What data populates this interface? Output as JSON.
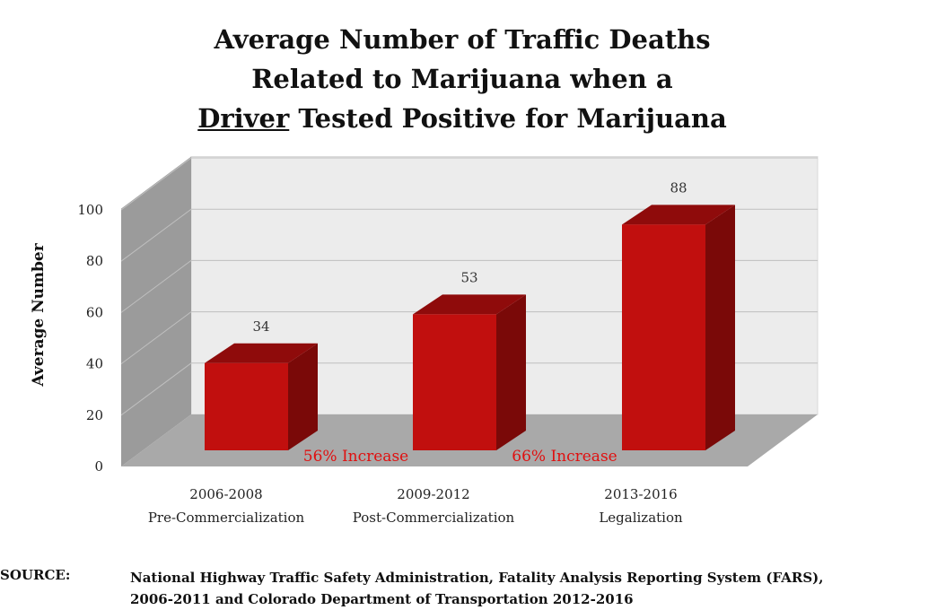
{
  "title": {
    "line1": "Average Number of Traffic Deaths",
    "line2": "Related to Marijuana when a",
    "line3_underlined": "Driver",
    "line3_rest": " Tested Positive for Marijuana"
  },
  "chart_data": {
    "type": "bar",
    "ylabel": "Average Number",
    "ylim": [
      0,
      100
    ],
    "yticks": [
      0,
      20,
      40,
      60,
      80,
      100
    ],
    "grid": true,
    "categories": [
      {
        "line1": "2006-2008",
        "line2": "Pre-Commercialization"
      },
      {
        "line1": "2009-2012",
        "line2": "Post-Commercialization"
      },
      {
        "line1": "2013-2016",
        "line2": "Legalization"
      }
    ],
    "values": [
      34,
      53,
      88
    ],
    "annotations": [
      "56% Increase",
      "66% Increase"
    ],
    "colors": {
      "bar_front": "#c10f0e",
      "bar_top": "#8f0b0b",
      "bar_side": "#7a0908",
      "annotation": "#e01010",
      "wall": "#ececec",
      "side_wall": "#9b9b9b",
      "floor": "#a9a9a9",
      "grid": "#bfbfbf"
    }
  },
  "source": {
    "label": "SOURCE:",
    "line1": "National Highway Traffic Safety Administration, Fatality Analysis Reporting System (FARS),",
    "line2": "2006-2011 and Colorado Department of Transportation 2012-2016"
  }
}
